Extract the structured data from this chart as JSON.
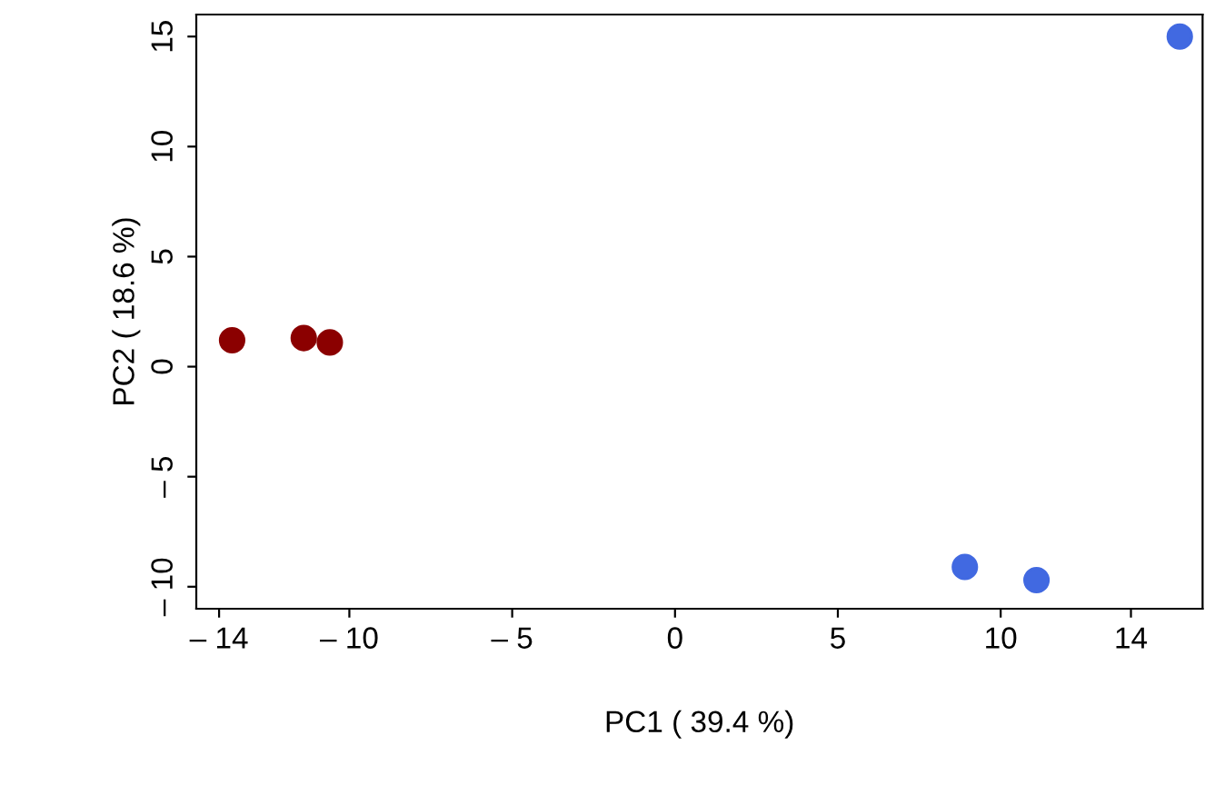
{
  "chart_data": {
    "type": "scatter",
    "xlabel": "PC1 ( 39.4 %)",
    "ylabel": "PC2 ( 18.6 %)",
    "series": [
      {
        "color": "#8b0000",
        "x": [
          -13.6,
          -11.4,
          -10.6
        ],
        "values": [
          1.2,
          1.3,
          1.1
        ]
      },
      {
        "color": "#4169e1",
        "x": [
          8.9,
          11.1,
          15.5
        ],
        "values": [
          -9.1,
          -9.7,
          15.0
        ]
      }
    ],
    "xlim": [
      -14.7,
      16.2
    ],
    "ylim": [
      -11,
      16
    ],
    "xticks": [
      {
        "value": -14,
        "label": "– 14"
      },
      {
        "value": -10,
        "label": "– 10"
      },
      {
        "value": -5,
        "label": "– 5"
      },
      0,
      5,
      10,
      14
    ],
    "yticks": [
      {
        "value": -10,
        "label": "– 10"
      },
      {
        "value": -5,
        "label": "– 5"
      },
      0,
      5,
      10,
      15
    ],
    "marker": "circle",
    "grid": false,
    "legend": false
  }
}
